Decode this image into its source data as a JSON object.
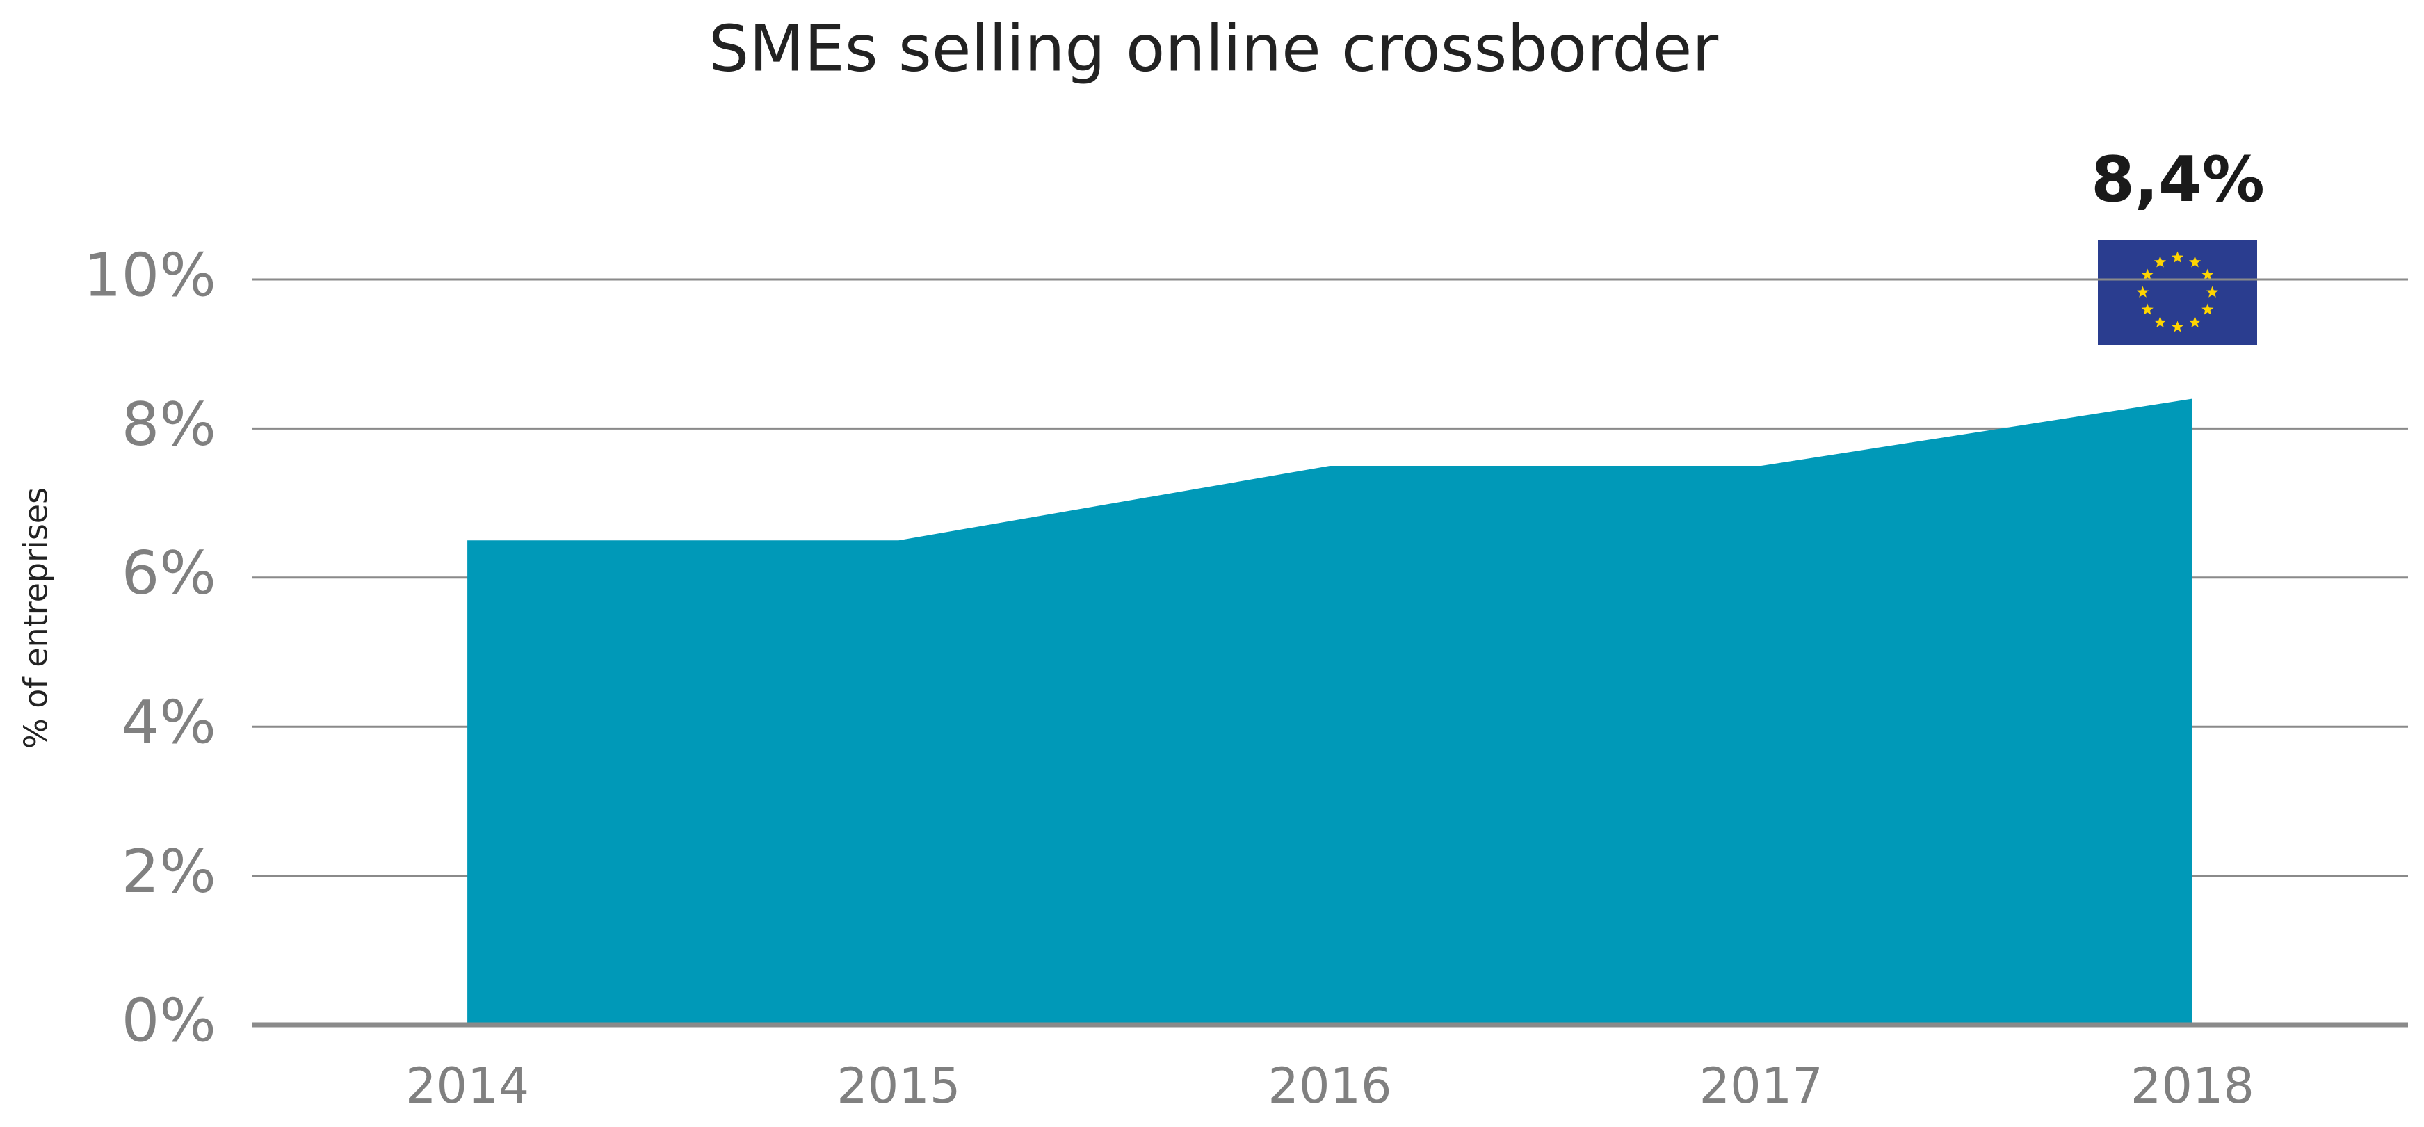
{
  "chart_data": {
    "type": "area",
    "title": "SMEs selling online crossborder",
    "y_label": "% of entreprises",
    "categories": [
      "2014",
      "2015",
      "2016",
      "2017",
      "2018"
    ],
    "values": [
      6.5,
      6.5,
      7.5,
      7.5,
      8.4
    ],
    "value_labels": [
      null,
      null,
      null,
      null,
      "8,4%"
    ],
    "color": "#0099b8",
    "ylim": [
      0,
      10
    ],
    "yticks": [
      {
        "value": 0,
        "label": "0%"
      },
      {
        "value": 2,
        "label": "2%"
      },
      {
        "value": 4,
        "label": "4%"
      },
      {
        "value": 6,
        "label": "6%"
      },
      {
        "value": 8,
        "label": "8%"
      },
      {
        "value": 10,
        "label": "10%"
      }
    ],
    "grid": true
  }
}
